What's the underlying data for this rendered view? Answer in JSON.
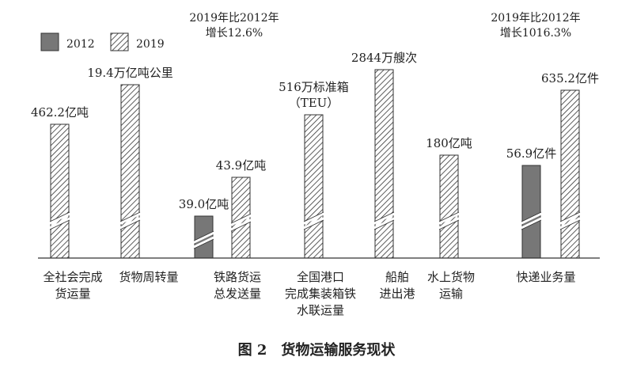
{
  "chart_data": {
    "type": "bar",
    "title": "图 2　货物运输服务现状",
    "legend": [
      "2012",
      "2019"
    ],
    "series": [
      {
        "name": "2012",
        "color": "#777777",
        "pattern": "solid"
      },
      {
        "name": "2019",
        "color": "#444444",
        "pattern": "diagonal-hatch"
      }
    ],
    "categories": [
      {
        "label_lines": [
          "全社会完成",
          "货运量"
        ],
        "bars": [
          {
            "series": "2019",
            "value": 462.2,
            "label": "462.2亿吨"
          }
        ]
      },
      {
        "label_lines": [
          "货物周转量"
        ],
        "bars": [
          {
            "series": "2019",
            "value": 19.4,
            "label": "19.4万亿吨公里"
          }
        ]
      },
      {
        "label_lines": [
          "铁路货运",
          "总发送量"
        ],
        "bars": [
          {
            "series": "2012",
            "value": 39.0,
            "label": "39.0亿吨"
          },
          {
            "series": "2019",
            "value": 43.9,
            "label": "43.9亿吨"
          }
        ]
      },
      {
        "label_lines": [
          "全国港口",
          "完成集装箱铁",
          "水联运量"
        ],
        "bars": [
          {
            "series": "2019",
            "value": 516,
            "label_lines": [
              "516万标准箱",
              "（TEU）"
            ]
          }
        ]
      },
      {
        "label_lines": [
          "船舶",
          "进出港"
        ],
        "bars": [
          {
            "series": "2019",
            "value": 2844,
            "label": "2844万艘次"
          }
        ]
      },
      {
        "label_lines": [
          "水上货物",
          "运输"
        ],
        "bars": [
          {
            "series": "2019",
            "value": 180,
            "label": "180亿吨"
          }
        ]
      },
      {
        "label_lines": [
          "快递业务量"
        ],
        "bars": [
          {
            "series": "2012",
            "value": 56.9,
            "label": "56.9亿件"
          },
          {
            "series": "2019",
            "value": 635.2,
            "label": "635.2亿件"
          }
        ]
      }
    ],
    "annotations": [
      {
        "lines": [
          "2019年比2012年",
          "增长12.6%"
        ],
        "target": "铁路货运总发送量"
      },
      {
        "lines": [
          "2019年比2012年",
          "增长1016.3%"
        ],
        "target": "快递业务量"
      }
    ],
    "axis_break": true,
    "grid": false,
    "legend_position": "top-left"
  }
}
